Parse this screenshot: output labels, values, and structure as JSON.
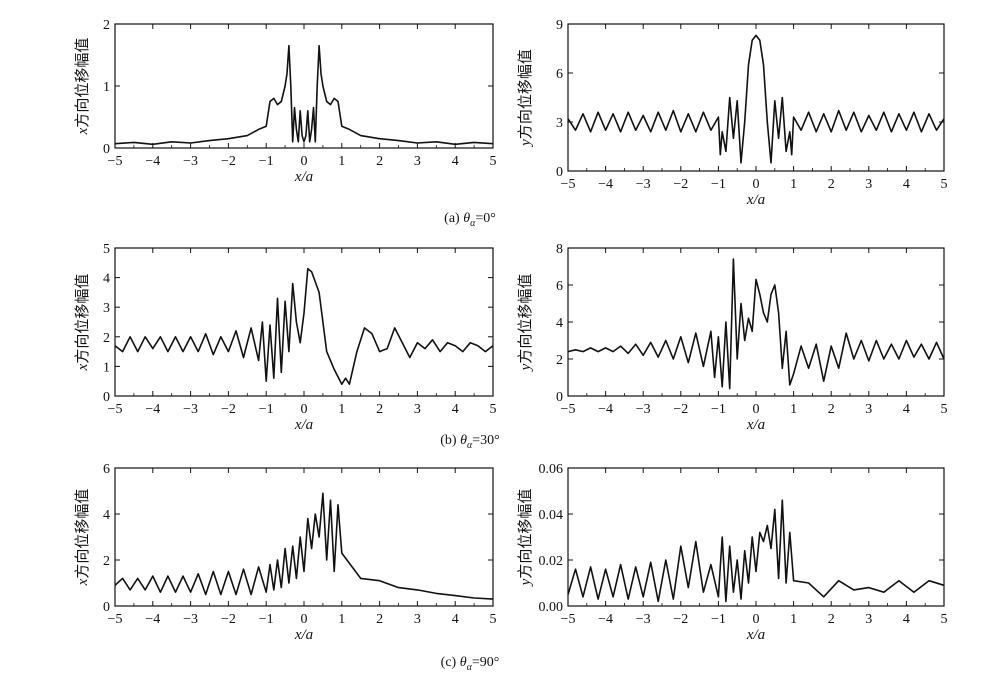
{
  "chart_data": [
    {
      "type": "line",
      "panel": "a-left",
      "xlabel": "x/a",
      "ylabel_var": "x",
      "ylabel_text": "方向位移幅值",
      "xlim": [
        -5,
        5
      ],
      "ylim": [
        0,
        2
      ],
      "xticks": [
        "−5",
        "−4",
        "−3",
        "−2",
        "−1",
        "0",
        "1",
        "2",
        "3",
        "4",
        "5"
      ],
      "yticks": [
        "0",
        "1",
        "2"
      ],
      "x": [
        -5,
        -4.5,
        -4,
        -3.5,
        -3,
        -2.5,
        -2,
        -1.5,
        -1.2,
        -1.0,
        -0.9,
        -0.8,
        -0.7,
        -0.6,
        -0.5,
        -0.45,
        -0.4,
        -0.35,
        -0.3,
        -0.25,
        -0.2,
        -0.15,
        -0.1,
        -0.05,
        0,
        0.05,
        0.1,
        0.15,
        0.2,
        0.25,
        0.3,
        0.35,
        0.4,
        0.45,
        0.5,
        0.6,
        0.7,
        0.8,
        0.9,
        1.0,
        1.2,
        1.5,
        2,
        2.5,
        3,
        3.5,
        4,
        4.5,
        5
      ],
      "y": [
        0.07,
        0.09,
        0.06,
        0.1,
        0.08,
        0.12,
        0.15,
        0.2,
        0.3,
        0.35,
        0.75,
        0.8,
        0.7,
        0.75,
        1.0,
        1.2,
        1.65,
        1.0,
        0.1,
        0.65,
        0.3,
        0.1,
        0.6,
        0.2,
        0.1,
        0.2,
        0.6,
        0.1,
        0.3,
        0.65,
        0.1,
        1.0,
        1.65,
        1.2,
        1.0,
        0.75,
        0.7,
        0.8,
        0.75,
        0.35,
        0.3,
        0.2,
        0.15,
        0.12,
        0.08,
        0.1,
        0.06,
        0.09,
        0.07
      ]
    },
    {
      "type": "line",
      "panel": "a-right",
      "xlabel": "x/a",
      "ylabel_var": "y",
      "ylabel_text": "方向位移幅值",
      "xlim": [
        -5,
        5
      ],
      "ylim": [
        0,
        9
      ],
      "xticks": [
        "−5",
        "−4",
        "−3",
        "−2",
        "−1",
        "0",
        "1",
        "2",
        "3",
        "4",
        "5"
      ],
      "yticks": [
        "0",
        "3",
        "6",
        "9"
      ],
      "x": [
        -5,
        -4.8,
        -4.6,
        -4.4,
        -4.2,
        -4.0,
        -3.8,
        -3.6,
        -3.4,
        -3.2,
        -3.0,
        -2.8,
        -2.6,
        -2.4,
        -2.2,
        -2.0,
        -1.8,
        -1.6,
        -1.4,
        -1.2,
        -1.0,
        -0.95,
        -0.9,
        -0.8,
        -0.7,
        -0.6,
        -0.5,
        -0.4,
        -0.3,
        -0.2,
        -0.1,
        0,
        0.1,
        0.2,
        0.3,
        0.4,
        0.5,
        0.6,
        0.7,
        0.8,
        0.9,
        0.95,
        1.0,
        1.2,
        1.4,
        1.6,
        1.8,
        2.0,
        2.2,
        2.4,
        2.6,
        2.8,
        3.0,
        3.2,
        3.4,
        3.6,
        3.8,
        4.0,
        4.2,
        4.4,
        4.6,
        4.8,
        5
      ],
      "y": [
        3.2,
        2.5,
        3.5,
        2.4,
        3.6,
        2.5,
        3.5,
        2.4,
        3.6,
        2.5,
        3.4,
        2.4,
        3.6,
        2.5,
        3.7,
        2.4,
        3.5,
        2.4,
        3.6,
        2.5,
        3.3,
        1.0,
        2.4,
        1.2,
        4.5,
        2.0,
        4.3,
        0.5,
        3.0,
        6.5,
        8.0,
        8.3,
        8.0,
        6.5,
        3.0,
        0.5,
        4.3,
        2.0,
        4.5,
        1.2,
        2.4,
        1.0,
        3.3,
        2.5,
        3.6,
        2.4,
        3.5,
        2.4,
        3.7,
        2.5,
        3.6,
        2.4,
        3.4,
        2.5,
        3.6,
        2.4,
        3.5,
        2.5,
        3.6,
        2.4,
        3.5,
        2.5,
        3.2
      ]
    },
    {
      "type": "line",
      "panel": "b-left",
      "xlabel": "x/a",
      "ylabel_var": "x",
      "ylabel_text": "方向位移幅值",
      "xlim": [
        -5,
        5
      ],
      "ylim": [
        0,
        5
      ],
      "xticks": [
        "−5",
        "−4",
        "−3",
        "−2",
        "−1",
        "0",
        "1",
        "2",
        "3",
        "4",
        "5"
      ],
      "yticks": [
        "0",
        "1",
        "2",
        "3",
        "4",
        "5"
      ],
      "x": [
        -5,
        -4.8,
        -4.6,
        -4.4,
        -4.2,
        -4.0,
        -3.8,
        -3.6,
        -3.4,
        -3.2,
        -3.0,
        -2.8,
        -2.6,
        -2.4,
        -2.2,
        -2.0,
        -1.8,
        -1.6,
        -1.4,
        -1.2,
        -1.1,
        -1.0,
        -0.9,
        -0.8,
        -0.7,
        -0.6,
        -0.5,
        -0.4,
        -0.3,
        -0.2,
        -0.1,
        0,
        0.1,
        0.2,
        0.4,
        0.6,
        0.8,
        1.0,
        1.1,
        1.2,
        1.4,
        1.6,
        1.8,
        2.0,
        2.2,
        2.4,
        2.6,
        2.8,
        3.0,
        3.2,
        3.4,
        3.6,
        3.8,
        4.0,
        4.2,
        4.4,
        4.6,
        4.8,
        5
      ],
      "y": [
        1.7,
        1.5,
        2.0,
        1.5,
        2.0,
        1.6,
        2.0,
        1.5,
        2.0,
        1.5,
        2.0,
        1.5,
        2.1,
        1.4,
        2.0,
        1.5,
        2.2,
        1.3,
        2.3,
        1.2,
        2.5,
        0.5,
        2.4,
        0.6,
        3.3,
        0.8,
        3.2,
        1.5,
        3.8,
        2.5,
        1.8,
        2.8,
        4.3,
        4.2,
        3.5,
        1.5,
        0.9,
        0.4,
        0.6,
        0.4,
        1.5,
        2.3,
        2.1,
        1.5,
        1.6,
        2.3,
        1.8,
        1.3,
        1.8,
        1.6,
        1.9,
        1.5,
        1.8,
        1.7,
        1.5,
        1.8,
        1.7,
        1.5,
        1.7
      ]
    },
    {
      "type": "line",
      "panel": "b-right",
      "xlabel": "x/a",
      "ylabel_var": "y",
      "ylabel_text": "方向位移幅值",
      "xlim": [
        -5,
        5
      ],
      "ylim": [
        0,
        8
      ],
      "xticks": [
        "−5",
        "−4",
        "−3",
        "−2",
        "−1",
        "0",
        "1",
        "2",
        "3",
        "4",
        "5"
      ],
      "yticks": [
        "0",
        "2",
        "4",
        "6",
        "8"
      ],
      "x": [
        -5,
        -4.8,
        -4.6,
        -4.4,
        -4.2,
        -4.0,
        -3.8,
        -3.6,
        -3.4,
        -3.2,
        -3.0,
        -2.8,
        -2.6,
        -2.4,
        -2.2,
        -2.0,
        -1.8,
        -1.6,
        -1.4,
        -1.2,
        -1.1,
        -1.0,
        -0.9,
        -0.8,
        -0.7,
        -0.6,
        -0.5,
        -0.4,
        -0.3,
        -0.2,
        -0.1,
        0,
        0.1,
        0.2,
        0.3,
        0.4,
        0.5,
        0.6,
        0.7,
        0.8,
        0.9,
        1.0,
        1.2,
        1.4,
        1.6,
        1.8,
        2.0,
        2.2,
        2.4,
        2.6,
        2.8,
        3.0,
        3.2,
        3.4,
        3.6,
        3.8,
        4.0,
        4.2,
        4.4,
        4.6,
        4.8,
        5
      ],
      "y": [
        2.4,
        2.5,
        2.4,
        2.6,
        2.4,
        2.6,
        2.4,
        2.7,
        2.3,
        2.8,
        2.2,
        2.9,
        2.1,
        3.0,
        2.0,
        3.2,
        1.8,
        3.4,
        1.6,
        3.5,
        1.0,
        3.2,
        0.5,
        4.0,
        0.4,
        7.4,
        2.0,
        5.0,
        3.0,
        4.2,
        3.5,
        6.3,
        5.5,
        4.5,
        4.0,
        5.5,
        6.0,
        4.5,
        1.5,
        3.5,
        0.6,
        1.2,
        2.7,
        1.5,
        2.8,
        0.8,
        2.7,
        1.5,
        3.4,
        2.0,
        3.0,
        1.9,
        3.0,
        2.0,
        2.8,
        2.0,
        3.0,
        2.1,
        2.8,
        2.0,
        2.9,
        2.0
      ]
    },
    {
      "type": "line",
      "panel": "c-left",
      "xlabel": "x/a",
      "ylabel_var": "x",
      "ylabel_text": "方向位移幅值",
      "xlim": [
        -5,
        5
      ],
      "ylim": [
        0,
        6
      ],
      "xticks": [
        "−5",
        "−4",
        "−3",
        "−2",
        "−1",
        "0",
        "1",
        "2",
        "3",
        "4",
        "5"
      ],
      "yticks": [
        "0",
        "2",
        "4",
        "6"
      ],
      "x": [
        -5,
        -4.8,
        -4.6,
        -4.4,
        -4.2,
        -4.0,
        -3.8,
        -3.6,
        -3.4,
        -3.2,
        -3.0,
        -2.8,
        -2.6,
        -2.4,
        -2.2,
        -2.0,
        -1.8,
        -1.6,
        -1.4,
        -1.2,
        -1.0,
        -0.9,
        -0.8,
        -0.7,
        -0.6,
        -0.5,
        -0.4,
        -0.3,
        -0.2,
        -0.1,
        0,
        0.1,
        0.2,
        0.3,
        0.4,
        0.5,
        0.6,
        0.7,
        0.8,
        0.9,
        1.0,
        1.5,
        2.0,
        2.5,
        3.0,
        3.5,
        4.0,
        4.5,
        5
      ],
      "y": [
        0.9,
        1.2,
        0.7,
        1.2,
        0.7,
        1.3,
        0.6,
        1.3,
        0.6,
        1.3,
        0.6,
        1.4,
        0.5,
        1.5,
        0.5,
        1.5,
        0.5,
        1.6,
        0.5,
        1.7,
        0.6,
        1.8,
        0.7,
        2.0,
        0.8,
        2.5,
        1.0,
        2.6,
        1.2,
        3.0,
        1.5,
        3.8,
        2.5,
        4.0,
        3.0,
        4.9,
        2.0,
        4.6,
        1.5,
        4.4,
        2.3,
        1.2,
        1.1,
        0.8,
        0.7,
        0.55,
        0.45,
        0.35,
        0.3
      ]
    },
    {
      "type": "line",
      "panel": "c-right",
      "xlabel": "x/a",
      "ylabel_var": "y",
      "ylabel_text": "方向位移幅值",
      "xlim": [
        -5,
        5
      ],
      "ylim": [
        0,
        0.06
      ],
      "xticks": [
        "−5",
        "−4",
        "−3",
        "−2",
        "−1",
        "0",
        "1",
        "2",
        "3",
        "4",
        "5"
      ],
      "yticks": [
        "0.00",
        "0.02",
        "0.04",
        "0.06"
      ],
      "x": [
        -5,
        -4.8,
        -4.6,
        -4.4,
        -4.2,
        -4.0,
        -3.8,
        -3.6,
        -3.4,
        -3.2,
        -3.0,
        -2.8,
        -2.6,
        -2.4,
        -2.2,
        -2.0,
        -1.8,
        -1.6,
        -1.4,
        -1.2,
        -1.0,
        -0.9,
        -0.8,
        -0.7,
        -0.6,
        -0.5,
        -0.4,
        -0.3,
        -0.2,
        -0.1,
        0,
        0.1,
        0.2,
        0.3,
        0.4,
        0.5,
        0.6,
        0.7,
        0.8,
        0.9,
        1.0,
        1.4,
        1.8,
        2.2,
        2.6,
        3.0,
        3.4,
        3.8,
        4.2,
        4.6,
        5
      ],
      "y": [
        0.005,
        0.016,
        0.004,
        0.017,
        0.003,
        0.016,
        0.004,
        0.018,
        0.003,
        0.017,
        0.004,
        0.019,
        0.002,
        0.02,
        0.003,
        0.026,
        0.008,
        0.028,
        0.006,
        0.018,
        0.004,
        0.03,
        0.002,
        0.026,
        0.006,
        0.02,
        0.003,
        0.024,
        0.01,
        0.03,
        0.015,
        0.032,
        0.028,
        0.035,
        0.025,
        0.042,
        0.012,
        0.046,
        0.01,
        0.032,
        0.011,
        0.01,
        0.004,
        0.011,
        0.007,
        0.008,
        0.006,
        0.011,
        0.006,
        0.011,
        0.009
      ]
    }
  ],
  "captions": [
    {
      "prefix": "(a)",
      "sym": "θ",
      "sub": "α",
      "value": "=0°"
    },
    {
      "prefix": "(b)",
      "sym": "θ",
      "sub": "α",
      "value": "=30°"
    },
    {
      "prefix": "(c)",
      "sym": "θ",
      "sub": "α",
      "value": "=90°"
    }
  ]
}
